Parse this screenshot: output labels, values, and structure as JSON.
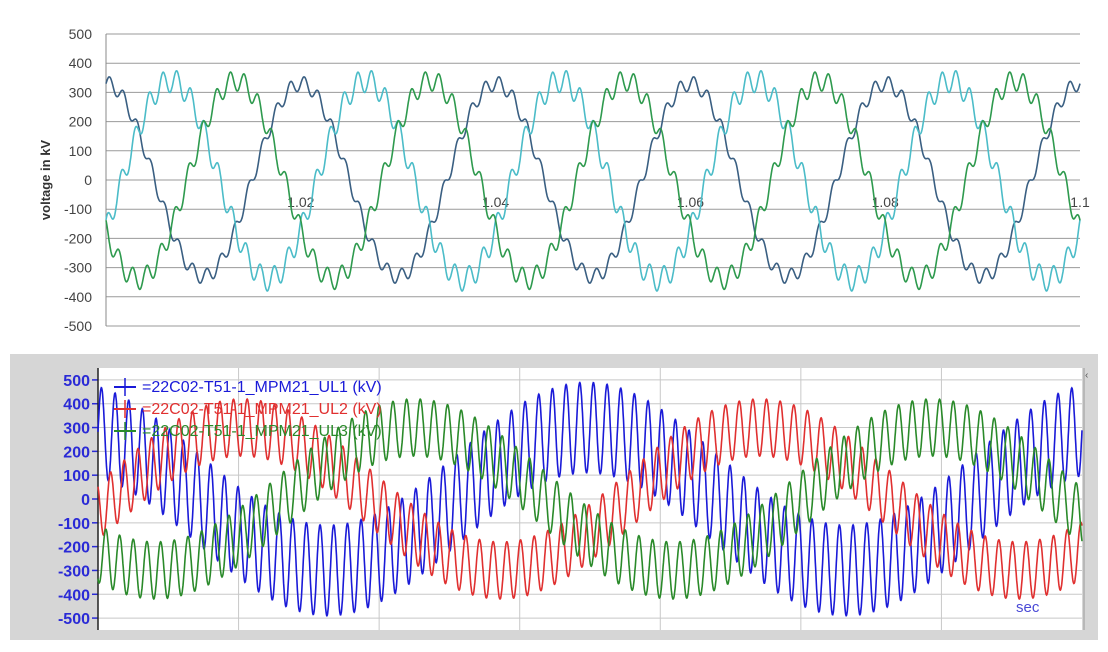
{
  "chart_data": [
    {
      "type": "line",
      "title": "",
      "xlabel": "",
      "ylabel": "voltage in kV",
      "xlim": [
        1.0,
        1.1
      ],
      "ylim": [
        -500,
        500
      ],
      "x_ticks": [
        "1.02",
        "1.04",
        "1.06",
        "1.08",
        "1.1"
      ],
      "y_ticks": [
        "500",
        "400",
        "300",
        "200",
        "100",
        "0",
        "-100",
        "-200",
        "-300",
        "-400",
        "-500"
      ],
      "grid": "horizontal",
      "series": [
        {
          "color": "#3a5f82",
          "amplitude": 330,
          "harmonic_amplitude": 25,
          "cycles": 5,
          "phase_deg": 90
        },
        {
          "color": "#4bbcc8",
          "amplitude": 340,
          "harmonic_amplitude": 40,
          "cycles": 5,
          "phase_deg": -30
        },
        {
          "color": "#2e9a4e",
          "amplitude": 340,
          "harmonic_amplitude": 35,
          "cycles": 5,
          "phase_deg": 210
        }
      ]
    },
    {
      "type": "line",
      "title": "",
      "xlabel": "sec",
      "ylabel": "",
      "ylim": [
        -550,
        550
      ],
      "y_ticks": [
        "500",
        "400",
        "300",
        "200",
        "100",
        "0",
        "-100",
        "-200",
        "-300",
        "-400",
        "-500"
      ],
      "grid": "both",
      "legend_position": "top-left",
      "series": [
        {
          "name": "=22C02-T51-1_MPM21_UL1 (kV)",
          "color": "#1a1ad8",
          "amplitude": 300,
          "harmonic_amplitude": 190,
          "cycles": 1.9,
          "phase_deg": 110
        },
        {
          "name": "=22C02-T51-1_MPM21_UL2 (kV)",
          "color": "#e03030",
          "amplitude": 300,
          "harmonic_amplitude": 120,
          "cycles": 1.9,
          "phase_deg": -10
        },
        {
          "name": "=22C02-T51-1_MPM21_UL3 (kV)",
          "color": "#2a8a2a",
          "amplitude": 300,
          "harmonic_amplitude": 120,
          "cycles": 1.9,
          "phase_deg": 230
        }
      ]
    }
  ]
}
